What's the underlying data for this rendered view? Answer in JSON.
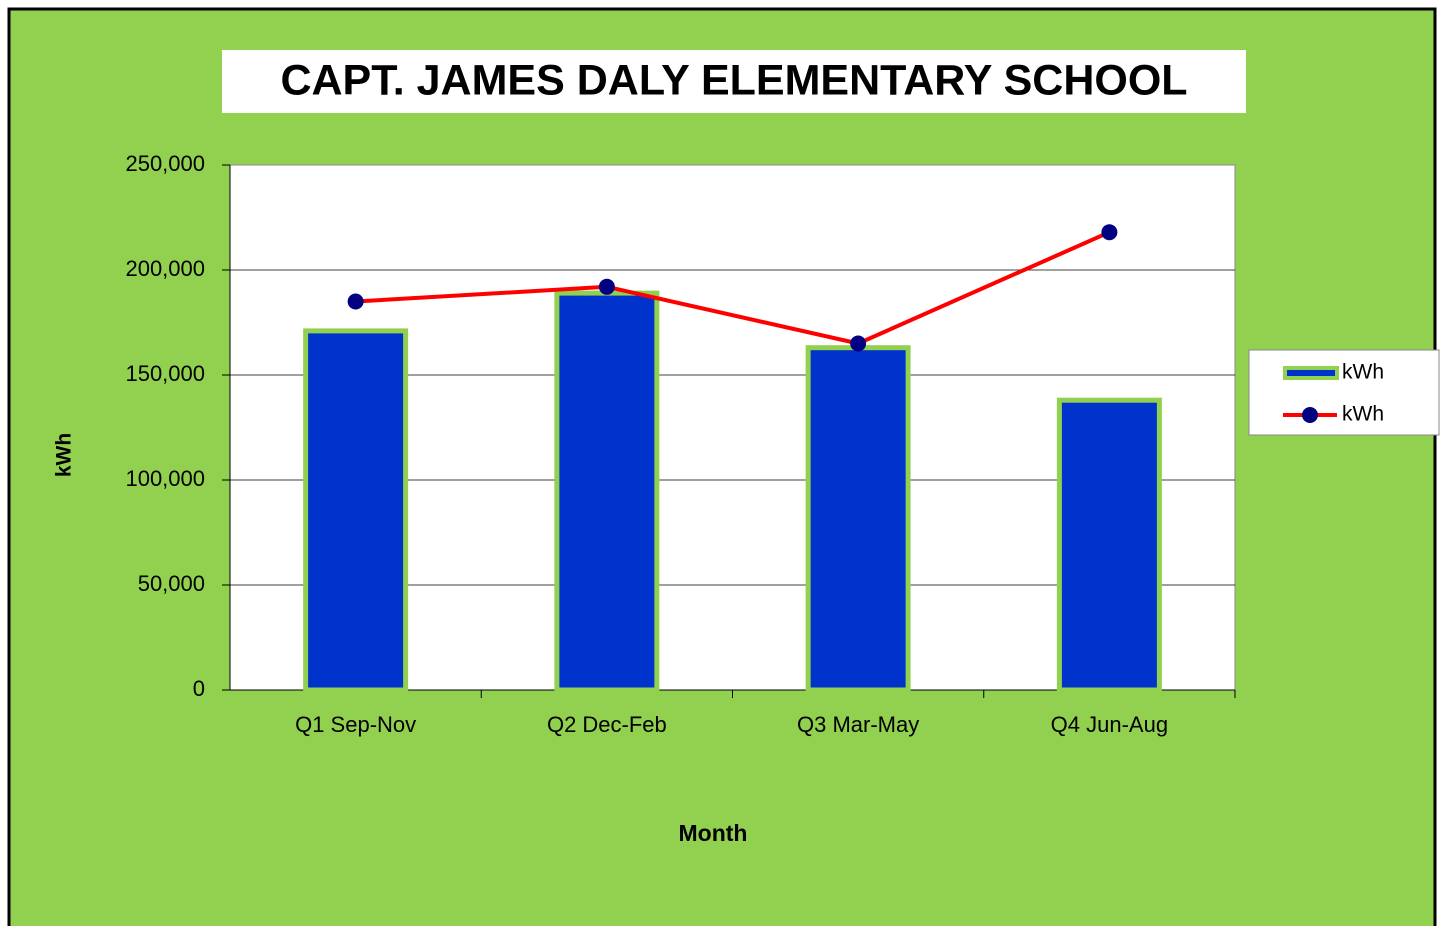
{
  "chart_data": {
    "type": "bar",
    "title": "CAPT. JAMES DALY ELEMENTARY SCHOOL",
    "x_label": "Month",
    "y_label": "kWh",
    "categories": [
      "Q1 Sep-Nov",
      "Q2 Dec-Feb",
      "Q3 Mar-May",
      "Q4 Jun-Aug"
    ],
    "series": [
      {
        "name": "kWh",
        "type": "bar",
        "color": "#0033cc",
        "values": [
          171000,
          189000,
          163000,
          138000
        ]
      },
      {
        "name": "kWh",
        "type": "line",
        "color": "#ff0000",
        "values": [
          185000,
          192000,
          165000,
          218000
        ]
      }
    ],
    "ylim": [
      0,
      250000
    ],
    "yticks": [
      0,
      {
        "value": 50000,
        "label": "50,000"
      },
      {
        "value": 100000,
        "label": "100,000"
      },
      {
        "value": 150000,
        "label": "150,000"
      },
      {
        "value": 200000,
        "label": "200,000"
      },
      {
        "value": 250000,
        "label": "250,000"
      }
    ],
    "grid": true,
    "legend": "right"
  }
}
